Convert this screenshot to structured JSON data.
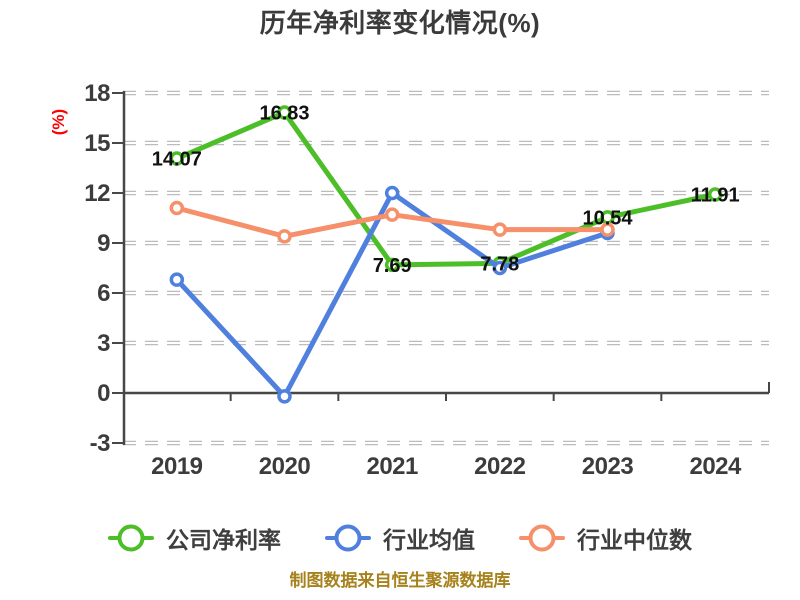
{
  "chart": {
    "title": "历年净利率变化情况(%)",
    "y_axis_title": "(%)",
    "source_note": "制图数据来自恒生聚源数据库",
    "colors": {
      "background": "#ffffff",
      "title": "#3b3b3b",
      "axis": "#474747",
      "tick_labels": "#3c3c3c",
      "y_axis_title": "#ff0000",
      "data_labels": "#111111",
      "source_note": "#a6821c",
      "grid_halo": "#bcbcbc",
      "grid_core": "#ffffff"
    }
  },
  "chart_data": {
    "type": "line",
    "categories": [
      "2019",
      "2020",
      "2021",
      "2022",
      "2023",
      "2024"
    ],
    "ylim": [
      -3,
      18
    ],
    "yticks": [
      18,
      15,
      12,
      9,
      6,
      3,
      0,
      -3
    ],
    "grid": "horizontal dashed",
    "legend_position": "bottom",
    "title": "历年净利率变化情况(%)",
    "ylabel": "(%)",
    "series": [
      {
        "id": "company-net-margin",
        "name": "公司净利率",
        "color": "#4cbe27",
        "values": [
          14.07,
          16.83,
          7.69,
          7.78,
          10.54,
          11.91
        ],
        "point_labels": [
          "14.07",
          "16.83",
          "7.69",
          "7.78",
          "10.54",
          "11.91"
        ]
      },
      {
        "id": "industry-mean",
        "name": "行业均值",
        "color": "#5080dd",
        "values": [
          6.8,
          -0.2,
          12,
          7.5,
          9.6,
          null
        ],
        "point_labels": []
      },
      {
        "id": "industry-median",
        "name": "行业中位数",
        "color": "#f5906a",
        "values": [
          11.1,
          9.4,
          10.7,
          9.8,
          9.8,
          null
        ],
        "point_labels": []
      }
    ]
  }
}
